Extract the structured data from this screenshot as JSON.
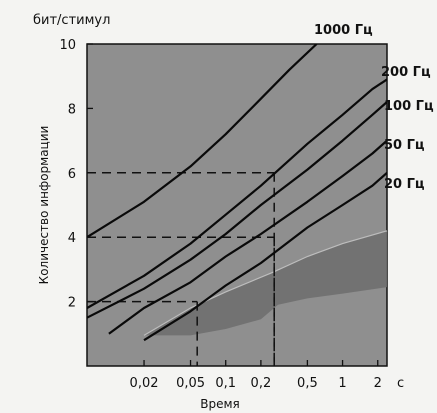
{
  "chart_data": {
    "type": "line",
    "ylabel_unit": "бит/стимул",
    "ylabel": "Количество информации",
    "xlabel": "Время",
    "xunit": "с",
    "x_scale": "log",
    "xlim": [
      0.0065,
      2.4
    ],
    "ylim": [
      0,
      10
    ],
    "grid": false,
    "x_ticks": [
      {
        "value": 0.02,
        "label": "0,02"
      },
      {
        "value": 0.05,
        "label": "0,05"
      },
      {
        "value": 0.1,
        "label": "0,1"
      },
      {
        "value": 0.2,
        "label": "0,2"
      },
      {
        "value": 0.5,
        "label": "0,5"
      },
      {
        "value": 1,
        "label": "1"
      },
      {
        "value": 2,
        "label": "2"
      }
    ],
    "y_ticks": [
      {
        "value": 2,
        "label": "2"
      },
      {
        "value": 4,
        "label": "4"
      },
      {
        "value": 6,
        "label": "6"
      },
      {
        "value": 8,
        "label": "8"
      },
      {
        "value": 10,
        "label": "10"
      }
    ],
    "series": [
      {
        "name": "1000 Гц",
        "x": [
          0.0065,
          0.02,
          0.05,
          0.1,
          0.2,
          0.35,
          0.6
        ],
        "y": [
          4.0,
          5.1,
          6.2,
          7.2,
          8.3,
          9.2,
          10.0
        ]
      },
      {
        "name": "200 Гц",
        "x": [
          0.0065,
          0.02,
          0.05,
          0.1,
          0.2,
          0.5,
          1,
          1.8,
          2.4
        ],
        "y": [
          1.8,
          2.8,
          3.8,
          4.7,
          5.6,
          6.9,
          7.8,
          8.6,
          8.9
        ]
      },
      {
        "name": "100 Гц",
        "x": [
          0.0065,
          0.02,
          0.05,
          0.1,
          0.2,
          0.5,
          1,
          1.8,
          2.4
        ],
        "y": [
          1.5,
          2.4,
          3.3,
          4.1,
          5.0,
          6.1,
          7.0,
          7.8,
          8.2
        ]
      },
      {
        "name": "50 Гц",
        "x": [
          0.01,
          0.02,
          0.05,
          0.1,
          0.2,
          0.5,
          1,
          1.8,
          2.4
        ],
        "y": [
          1.0,
          1.8,
          2.6,
          3.4,
          4.1,
          5.1,
          5.9,
          6.6,
          7.0
        ]
      },
      {
        "name": "20 Гц",
        "x": [
          0.02,
          0.05,
          0.1,
          0.2,
          0.5,
          1,
          1.8,
          2.4
        ],
        "y": [
          0.8,
          1.7,
          2.5,
          3.2,
          4.3,
          5.0,
          5.6,
          6.0
        ]
      }
    ],
    "shaded_region": {
      "upper": {
        "x": [
          0.02,
          0.05,
          0.1,
          0.25,
          0.5,
          1,
          2.4
        ],
        "y": [
          0.95,
          1.8,
          2.3,
          2.9,
          3.4,
          3.8,
          4.2
        ]
      },
      "lower": {
        "x": [
          0.02,
          0.05,
          0.1,
          0.2,
          0.28,
          0.5,
          1,
          2.4
        ],
        "y": [
          0.95,
          0.95,
          1.15,
          1.45,
          1.9,
          2.1,
          2.25,
          2.45
        ]
      }
    },
    "reference_lines": [
      {
        "x": 0.057,
        "y": 2
      },
      {
        "x": 0.26,
        "y": 4
      },
      {
        "x": 0.26,
        "y": 6
      }
    ]
  }
}
